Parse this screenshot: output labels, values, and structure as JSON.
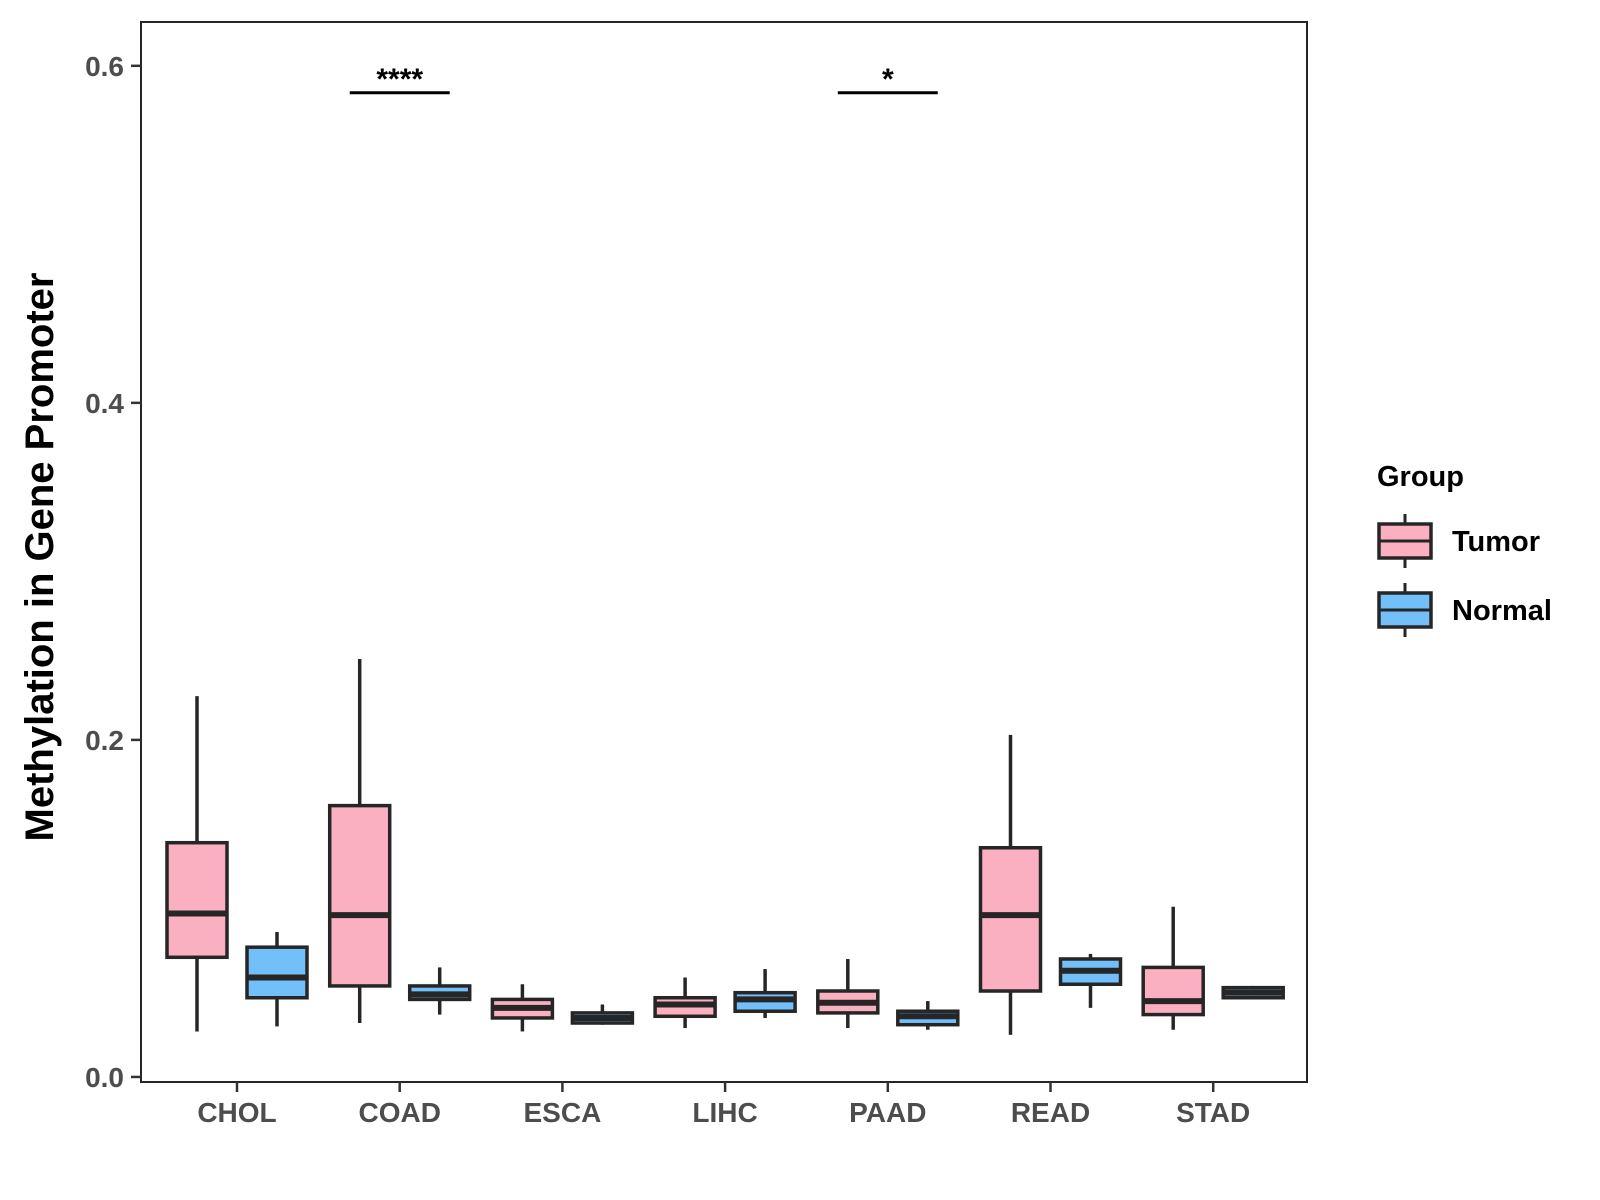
{
  "chart_data": {
    "type": "boxplot",
    "title": "",
    "xlabel": "",
    "ylabel": "Methylation in Gene Promoter",
    "ylim": [
      -0.003,
      0.626
    ],
    "yticks": [
      0.0,
      0.2,
      0.4,
      0.6
    ],
    "ytick_labels": [
      "0.0",
      "0.2",
      "0.4",
      "0.6"
    ],
    "grid": false,
    "legend_position": "right",
    "legend": {
      "title": "Group",
      "items": [
        {
          "name": "Tumor",
          "color": "#fbb0c2"
        },
        {
          "name": "Normal",
          "color": "#72bffa"
        }
      ]
    },
    "categories": [
      "CHOL",
      "COAD",
      "ESCA",
      "LIHC",
      "PAAD",
      "READ",
      "STAD"
    ],
    "series": [
      {
        "name": "Tumor",
        "color": "#fbb0c2",
        "boxes": [
          {
            "whisker_low": 0.027,
            "q1": 0.071,
            "median": 0.097,
            "q3": 0.139,
            "whisker_high": 0.226
          },
          {
            "whisker_low": 0.032,
            "q1": 0.054,
            "median": 0.096,
            "q3": 0.161,
            "whisker_high": 0.248
          },
          {
            "whisker_low": 0.027,
            "q1": 0.035,
            "median": 0.041,
            "q3": 0.046,
            "whisker_high": 0.055
          },
          {
            "whisker_low": 0.029,
            "q1": 0.036,
            "median": 0.043,
            "q3": 0.047,
            "whisker_high": 0.059
          },
          {
            "whisker_low": 0.029,
            "q1": 0.038,
            "median": 0.044,
            "q3": 0.051,
            "whisker_high": 0.07
          },
          {
            "whisker_low": 0.025,
            "q1": 0.051,
            "median": 0.096,
            "q3": 0.136,
            "whisker_high": 0.203
          },
          {
            "whisker_low": 0.028,
            "q1": 0.037,
            "median": 0.045,
            "q3": 0.065,
            "whisker_high": 0.101
          }
        ]
      },
      {
        "name": "Normal",
        "color": "#72bffa",
        "boxes": [
          {
            "whisker_low": 0.03,
            "q1": 0.047,
            "median": 0.059,
            "q3": 0.077,
            "whisker_high": 0.086
          },
          {
            "whisker_low": 0.037,
            "q1": 0.046,
            "median": 0.049,
            "q3": 0.054,
            "whisker_high": 0.065
          },
          {
            "whisker_low": 0.031,
            "q1": 0.032,
            "median": 0.035,
            "q3": 0.038,
            "whisker_high": 0.043
          },
          {
            "whisker_low": 0.035,
            "q1": 0.039,
            "median": 0.046,
            "q3": 0.05,
            "whisker_high": 0.064
          },
          {
            "whisker_low": 0.028,
            "q1": 0.031,
            "median": 0.036,
            "q3": 0.039,
            "whisker_high": 0.045
          },
          {
            "whisker_low": 0.041,
            "q1": 0.055,
            "median": 0.063,
            "q3": 0.07,
            "whisker_high": 0.073
          },
          {
            "whisker_low": 0.046,
            "q1": 0.047,
            "median": 0.05,
            "q3": 0.053,
            "whisker_high": 0.054
          }
        ]
      }
    ],
    "annotations": [
      {
        "category": "COAD",
        "label": "****",
        "y": 0.584
      },
      {
        "category": "PAAD",
        "label": "*",
        "y": 0.584
      }
    ]
  }
}
